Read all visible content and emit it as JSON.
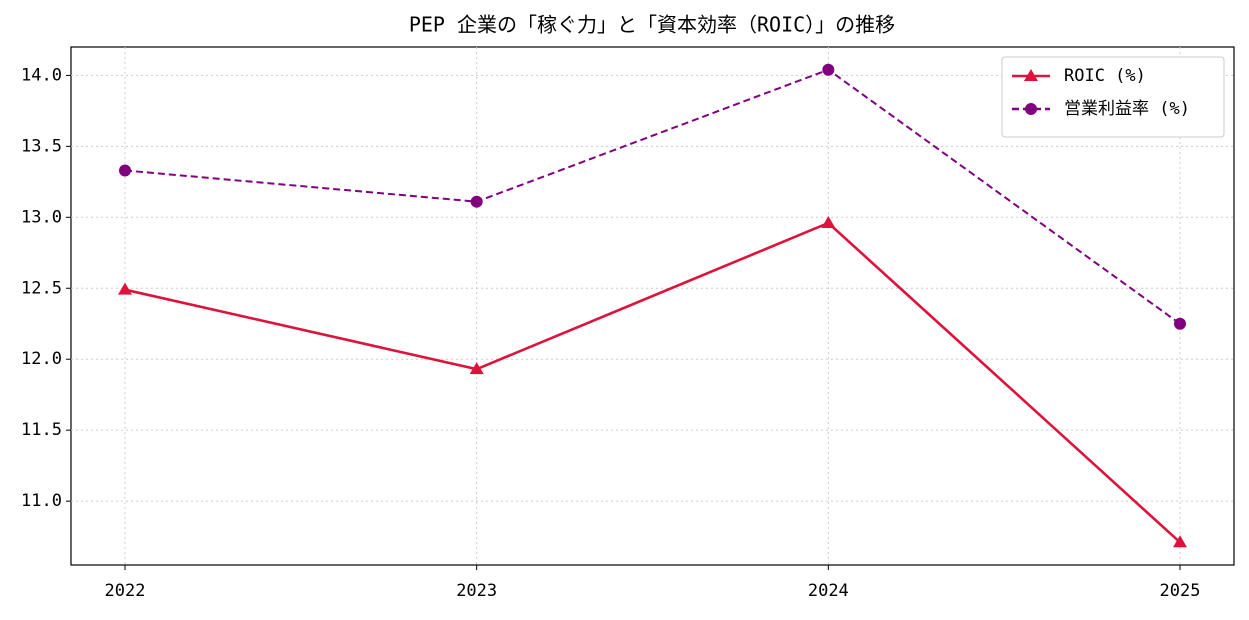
{
  "chart_data": {
    "type": "line",
    "title": "PEP 企業の「稼ぐ力」と「資本効率（ROIC）」の推移",
    "categories": [
      "2022",
      "2023",
      "2024",
      "2025"
    ],
    "series": [
      {
        "name": "ROIC (%)",
        "color": "#dc143c",
        "marker": "triangle",
        "linestyle": "solid",
        "values": [
          12.49,
          11.93,
          12.96,
          10.71
        ]
      },
      {
        "name": "営業利益率 (%)",
        "color": "#800080",
        "marker": "circle",
        "linestyle": "dashed",
        "values": [
          13.33,
          13.11,
          14.04,
          12.25
        ]
      }
    ],
    "ylim": [
      10.55,
      14.2
    ],
    "yticks": [
      {
        "value": 11,
        "label": "11.0"
      },
      {
        "value": 11.5,
        "label": "11.5"
      },
      {
        "value": 12,
        "label": "12.0"
      },
      {
        "value": 12.5,
        "label": "12.5"
      },
      {
        "value": 13,
        "label": "13.0"
      },
      {
        "value": 13.5,
        "label": "13.5"
      },
      {
        "value": 14,
        "label": "14.0"
      }
    ],
    "grid": true,
    "legend": "upper right"
  }
}
